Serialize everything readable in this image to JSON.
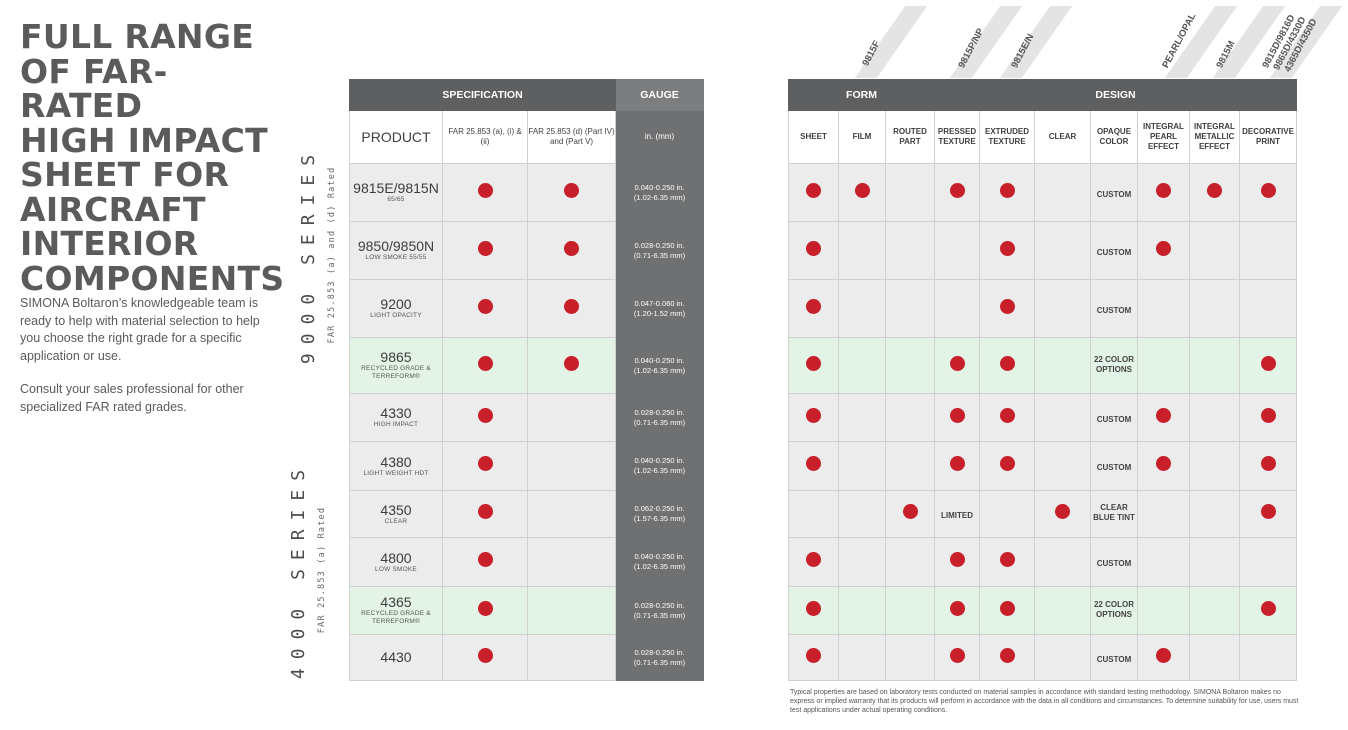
{
  "title_lines": [
    "FULL RANGE",
    "OF FAR-RATED",
    "HIGH IMPACT",
    "SHEET FOR",
    "AIRCRAFT",
    "INTERIOR",
    "COMPONENTS"
  ],
  "intro_p1": "SIMONA Boltaron’s knowledgeable team is ready to help with material selection to help you choose the right grade for a specific application or use.",
  "intro_p2": "Consult your sales professional for other specialized FAR rated grades.",
  "series_9000": {
    "name": "9000 SERIES",
    "rating": "FAR 25.853 (a) and (d) Rated"
  },
  "series_4000": {
    "name": "4000 SERIES",
    "rating": "FAR 25.853 (a) Rated"
  },
  "spec_table": {
    "header_spec": "SPECIFICATION",
    "header_gauge": "GAUGE",
    "col_product": "PRODUCT",
    "col_far_a": "FAR 25.853 (a), (i) & (ii)",
    "col_far_d": "FAR  25.853 (d) (Part IV) and (Part V)",
    "col_gauge": "in. (mm)"
  },
  "design_table": {
    "header_form": "FORM",
    "header_design": "DESIGN",
    "columns": [
      "SHEET",
      "FILM",
      "ROUTED PART",
      "PRESSED TEXTURE",
      "EXTRUDED TEXTURE",
      "CLEAR",
      "OPAQUE COLOR",
      "INTEGRAL PEARL EFFECT",
      "INTEGRAL METALLIC EFFECT",
      "DECORATIVE PRINT"
    ]
  },
  "rotated_labels": [
    "9815F",
    "9815P/NP",
    "9815E/N",
    "PEARL/OPAL",
    "9815M",
    "9815D/9816D",
    "9865D/4330D",
    "4365D/4350D"
  ],
  "rows": [
    {
      "product": "9815E/9815N",
      "desc": "65/65",
      "far_a": true,
      "far_d": true,
      "gauge": "0.040-0.250 in.",
      "gauge_mm": "(1.02-6.35 mm)",
      "sheet": true,
      "film": true,
      "routed": false,
      "pressed": "dot",
      "extruded": true,
      "clear": false,
      "opaque": "CUSTOM",
      "pearl": true,
      "metallic": true,
      "print": true,
      "green": false
    },
    {
      "product": "9850/9850N",
      "desc": "LOW SMOKE 55/55",
      "far_a": true,
      "far_d": true,
      "gauge": "0.028-0.250  in.",
      "gauge_mm": "(0.71-6.35 mm)",
      "sheet": true,
      "film": false,
      "routed": false,
      "pressed": "",
      "extruded": true,
      "clear": false,
      "opaque": "CUSTOM",
      "pearl": true,
      "metallic": false,
      "print": false,
      "green": false
    },
    {
      "product": "9200",
      "desc": "LIGHT OPACITY",
      "far_a": true,
      "far_d": true,
      "gauge": "0.047-0.060 in.",
      "gauge_mm": "(1.20-1.52 mm)",
      "sheet": true,
      "film": false,
      "routed": false,
      "pressed": "",
      "extruded": true,
      "clear": false,
      "opaque": "CUSTOM",
      "pearl": false,
      "metallic": false,
      "print": false,
      "green": false
    },
    {
      "product": "9865",
      "desc": "RECYCLED GRADE & TERREFORM®",
      "far_a": true,
      "far_d": true,
      "gauge": "0.040-0.250 in.",
      "gauge_mm": "(1.02-6.35 mm)",
      "sheet": true,
      "film": false,
      "routed": false,
      "pressed": "dot",
      "extruded": true,
      "clear": false,
      "opaque": "22 COLOR OPTIONS",
      "pearl": false,
      "metallic": false,
      "print": true,
      "green": true
    },
    {
      "product": "4330",
      "desc": "HIGH IMPACT",
      "far_a": true,
      "far_d": false,
      "gauge": "0.028-0.250 in.",
      "gauge_mm": "(0.71-6.35 mm)",
      "sheet": true,
      "film": false,
      "routed": false,
      "pressed": "dot",
      "extruded": true,
      "clear": false,
      "opaque": "CUSTOM",
      "pearl": true,
      "metallic": false,
      "print": true,
      "green": false
    },
    {
      "product": "4380",
      "desc": "LIGHT WEIGHT HDT",
      "far_a": true,
      "far_d": false,
      "gauge": "0.040-0.250 in.",
      "gauge_mm": "(1.02-6.35 mm)",
      "sheet": true,
      "film": false,
      "routed": false,
      "pressed": "dot",
      "extruded": true,
      "clear": false,
      "opaque": "CUSTOM",
      "pearl": true,
      "metallic": false,
      "print": true,
      "green": false
    },
    {
      "product": "4350",
      "desc": "CLEAR",
      "far_a": true,
      "far_d": false,
      "gauge": "0.062-0.250 in.",
      "gauge_mm": "(1.57-6.35 mm)",
      "sheet": false,
      "film": false,
      "routed": true,
      "pressed": "LIMITED",
      "extruded": false,
      "clear": true,
      "opaque": "CLEAR BLUE TINT",
      "pearl": false,
      "metallic": false,
      "print": true,
      "green": false
    },
    {
      "product": "4800",
      "desc": "LOW SMOKE",
      "far_a": true,
      "far_d": false,
      "gauge": "0.040-0.250 in.",
      "gauge_mm": "(1.02-6.35 mm)",
      "sheet": true,
      "film": false,
      "routed": false,
      "pressed": "dot",
      "extruded": true,
      "clear": false,
      "opaque": "CUSTOM",
      "pearl": false,
      "metallic": false,
      "print": false,
      "green": false
    },
    {
      "product": "4365",
      "desc": "RECYCLED GRADE & TERREFORM®",
      "far_a": true,
      "far_d": false,
      "gauge": "0.028-0.250 in.",
      "gauge_mm": "(0.71-6.35 mm)",
      "sheet": true,
      "film": false,
      "routed": false,
      "pressed": "dot",
      "extruded": true,
      "clear": false,
      "opaque": "22 COLOR OPTIONS",
      "pearl": false,
      "metallic": false,
      "print": true,
      "green": true
    },
    {
      "product": "4430",
      "desc": "",
      "far_a": true,
      "far_d": false,
      "gauge": "0.028-0.250 in.",
      "gauge_mm": "(0.71-6.35 mm)",
      "sheet": true,
      "film": false,
      "routed": false,
      "pressed": "dot",
      "extruded": true,
      "clear": false,
      "opaque": "CUSTOM",
      "pearl": true,
      "metallic": false,
      "print": false,
      "green": false
    }
  ],
  "footnote": "Typical properties are based on laboratory tests conducted on material samples in accordance with standard testing methodology. SIMONA Boltaron makes no express or implied warranty that its products will perform in accordance with the data in all conditions and circumstances. To determine suitability for use, users must test applications under actual operating conditions.",
  "colors": {
    "dot": "#c8202a",
    "header": "#5e5f61",
    "gauge": "#6f7072",
    "row": "#ececec",
    "row_green": "#e3f3e6"
  }
}
